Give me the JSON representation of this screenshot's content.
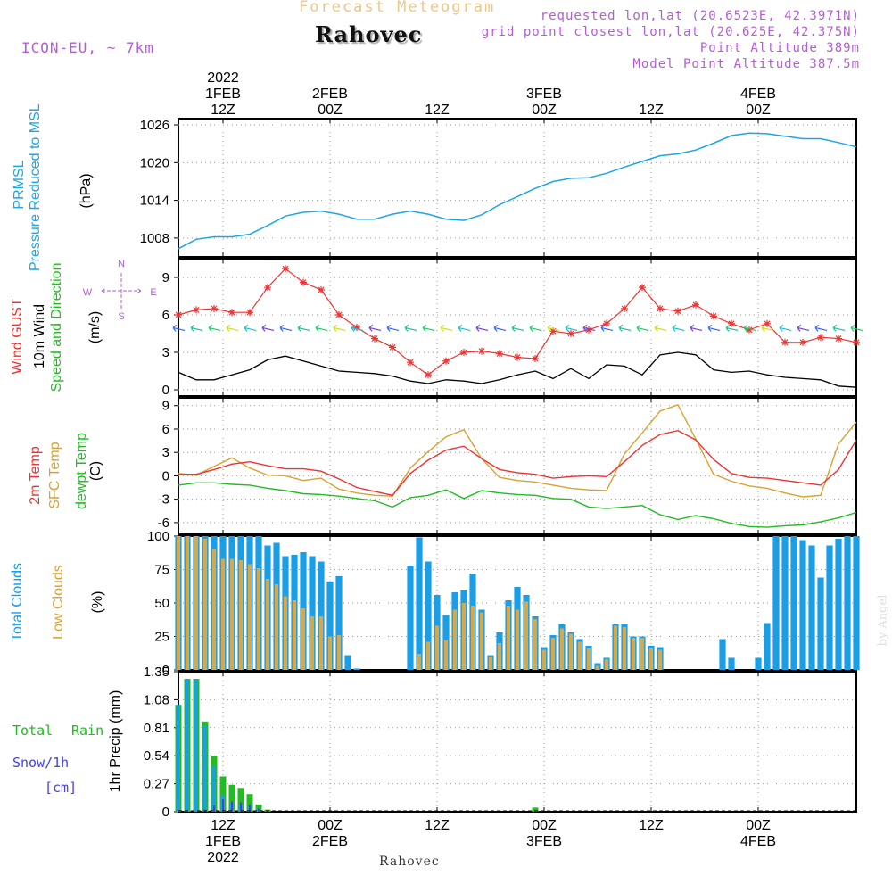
{
  "header": {
    "product": "Forecast Meteogram",
    "location": "Rahovec",
    "model": "ICON-EU, ~ 7km",
    "requested": "requested lon,lat (20.6523E, 42.3971N)",
    "gridpoint": "grid point closest lon,lat (20.625E, 42.375N)",
    "point_alt": "Point Altitude 389m",
    "model_alt": "Model Point Altitude 387.5m",
    "footer": "Rahovec",
    "credit": "by Angel"
  },
  "time_axis": {
    "top_ticks": [
      {
        "hour": 12,
        "l1": "2022",
        "l2": "1FEB",
        "l3": "12Z"
      },
      {
        "hour": 24,
        "l1": "",
        "l2": "2FEB",
        "l3": "00Z"
      },
      {
        "hour": 36,
        "l1": "",
        "l2": "",
        "l3": "12Z"
      },
      {
        "hour": 48,
        "l1": "",
        "l2": "3FEB",
        "l3": "00Z"
      },
      {
        "hour": 60,
        "l1": "",
        "l2": "",
        "l3": "12Z"
      },
      {
        "hour": 72,
        "l1": "",
        "l2": "4FEB",
        "l3": "00Z"
      }
    ],
    "bottom_ticks": [
      {
        "hour": 12,
        "l1": "12Z",
        "l2": "1FEB",
        "l3": "2022"
      },
      {
        "hour": 24,
        "l1": "00Z",
        "l2": "2FEB",
        "l3": ""
      },
      {
        "hour": 36,
        "l1": "12Z",
        "l2": "",
        "l3": ""
      },
      {
        "hour": 48,
        "l1": "00Z",
        "l2": "3FEB",
        "l3": ""
      },
      {
        "hour": 60,
        "l1": "12Z",
        "l2": "",
        "l3": ""
      },
      {
        "hour": 72,
        "l1": "00Z",
        "l2": "4FEB",
        "l3": ""
      }
    ],
    "start": "2022-02-01 07Z",
    "end": "2022-02-04 10Z",
    "range_hours": [
      7,
      83
    ]
  },
  "labels": {
    "pressure": {
      "a": "PRMSL",
      "b": "Pressure Reduced to MSL",
      "unit": "(hPa)"
    },
    "wind": {
      "a": "Wind GUST",
      "b": "10m Wind",
      "c": "Speed and Direction",
      "unit": "(m/s)",
      "compass_w": "W",
      "compass_e": "E",
      "compass_n": "N",
      "compass_s": "S"
    },
    "temp": {
      "a": "2m Temp",
      "b": "SFC Temp",
      "c": "dewpt Temp",
      "unit": "(C)"
    },
    "clouds": {
      "a": "Total Clouds",
      "b": "Low Clouds",
      "unit": "(%)"
    },
    "precip": {
      "a": "Total",
      "b": "Rain",
      "c": "Snow/1h",
      "d": "[cm]",
      "unit": "1hr Precip (mm)"
    }
  },
  "colors": {
    "pressure": "#1ba6e6",
    "gust": "#ee3333",
    "wind": "#000000",
    "wind_label": "#22bb22",
    "t2m": "#ee3333",
    "sfc": "#d8a230",
    "dewpt": "#22bb22",
    "total_clouds": "#1a9ee6",
    "low_clouds": "#d8a848",
    "total_precip": "#22bb22",
    "rain": "#1a9ee6",
    "snow": "#4444dd",
    "header_purple": "#b060d0"
  },
  "chart_data": [
    {
      "type": "line",
      "name": "Pressure Reduced to MSL",
      "x": [
        7,
        9,
        11,
        13,
        15,
        17,
        19,
        21,
        23,
        25,
        27,
        29,
        31,
        33,
        35,
        37,
        39,
        41,
        43,
        45,
        47,
        49,
        51,
        53,
        55,
        57,
        59,
        61,
        63,
        65,
        67,
        69,
        71,
        73,
        75,
        77,
        79,
        81,
        83
      ],
      "series": [
        {
          "name": "PRMSL",
          "values": [
            1006.3,
            1007.8,
            1008.2,
            1008.2,
            1008.6,
            1010.0,
            1011.5,
            1012.1,
            1012.3,
            1011.8,
            1011.0,
            1011.0,
            1011.8,
            1012.3,
            1011.8,
            1011.0,
            1010.8,
            1011.7,
            1013.3,
            1014.6,
            1015.9,
            1017.0,
            1017.5,
            1017.6,
            1018.3,
            1019.3,
            1020.2,
            1021.1,
            1021.4,
            1022.0,
            1023.1,
            1024.3,
            1024.7,
            1024.6,
            1024.2,
            1023.8,
            1023.8,
            1023.2,
            1022.5
          ]
        }
      ],
      "ylabel": "(hPa)",
      "ylim": [
        1005,
        1027
      ],
      "yticks": [
        1008,
        1014,
        1020,
        1026
      ],
      "grid": true
    },
    {
      "type": "line",
      "name": "Wind",
      "x": [
        7,
        9,
        11,
        13,
        15,
        17,
        19,
        21,
        23,
        25,
        27,
        29,
        31,
        33,
        35,
        37,
        39,
        41,
        43,
        45,
        47,
        49,
        51,
        53,
        55,
        57,
        59,
        61,
        63,
        65,
        67,
        69,
        71,
        73,
        75,
        77,
        79,
        81,
        83
      ],
      "series": [
        {
          "name": "Wind GUST",
          "values": [
            6.0,
            6.4,
            6.5,
            6.2,
            6.2,
            8.2,
            9.7,
            8.6,
            8.0,
            6.0,
            5.0,
            4.1,
            3.4,
            2.2,
            1.2,
            2.3,
            3.0,
            3.1,
            2.9,
            2.6,
            2.5,
            4.7,
            4.5,
            4.8,
            5.3,
            6.5,
            8.2,
            6.5,
            6.3,
            6.8,
            5.9,
            5.3,
            4.8,
            5.3,
            3.8,
            3.8,
            4.2,
            4.1,
            3.8
          ]
        },
        {
          "name": "10m Wind",
          "values": [
            1.4,
            0.8,
            0.8,
            1.2,
            1.6,
            2.4,
            2.7,
            2.3,
            1.9,
            1.5,
            1.4,
            1.3,
            1.1,
            0.7,
            0.5,
            0.8,
            0.7,
            0.5,
            0.8,
            1.2,
            1.5,
            0.9,
            1.7,
            0.9,
            2.0,
            1.9,
            1.2,
            2.8,
            3.0,
            2.8,
            1.6,
            1.4,
            1.5,
            1.2,
            1.0,
            0.9,
            0.8,
            0.3,
            0.2
          ]
        }
      ],
      "ylabel": "(m/s)",
      "ylim": [
        -0.5,
        10.5
      ],
      "yticks": [
        0,
        3,
        6,
        9
      ],
      "grid": true
    },
    {
      "type": "line",
      "name": "Temperature",
      "x": [
        7,
        9,
        11,
        13,
        15,
        17,
        19,
        21,
        23,
        25,
        27,
        29,
        31,
        33,
        35,
        37,
        39,
        41,
        43,
        45,
        47,
        49,
        51,
        53,
        55,
        57,
        59,
        61,
        63,
        65,
        67,
        69,
        71,
        73,
        75,
        77,
        79,
        81,
        83
      ],
      "series": [
        {
          "name": "2m Temp",
          "values": [
            0.2,
            0.2,
            0.8,
            1.5,
            1.8,
            1.3,
            0.9,
            0.9,
            0.6,
            -0.4,
            -1.5,
            -2.0,
            -2.5,
            0.3,
            2.0,
            3.3,
            3.8,
            2.2,
            0.8,
            0.4,
            0.2,
            -0.3,
            -0.1,
            0.0,
            -0.1,
            1.8,
            3.9,
            5.3,
            5.8,
            4.6,
            2.1,
            0.3,
            -0.2,
            -0.3,
            -0.6,
            -0.9,
            -1.2,
            0.8,
            4.6
          ]
        },
        {
          "name": "SFC Temp",
          "values": [
            0.3,
            0.1,
            1.2,
            2.3,
            1.0,
            0.1,
            0.0,
            -0.6,
            -0.3,
            -1.7,
            -2.2,
            -2.5,
            -2.6,
            1.0,
            3.1,
            5.0,
            5.9,
            2.2,
            -0.2,
            -0.6,
            -0.8,
            -1.2,
            -1.6,
            -1.8,
            -1.9,
            2.8,
            5.5,
            8.3,
            9.1,
            4.7,
            0.2,
            -0.7,
            -1.3,
            -1.6,
            -2.2,
            -2.7,
            -2.5,
            4.1,
            6.9
          ]
        },
        {
          "name": "dewpt Temp",
          "values": [
            -1.2,
            -0.9,
            -0.9,
            -1.1,
            -1.2,
            -1.6,
            -1.9,
            -2.3,
            -2.4,
            -2.6,
            -2.9,
            -3.2,
            -4.0,
            -2.8,
            -2.5,
            -1.8,
            -2.9,
            -1.9,
            -2.2,
            -2.4,
            -2.5,
            -2.9,
            -3.0,
            -4.0,
            -4.2,
            -4.0,
            -3.8,
            -5.0,
            -5.6,
            -5.1,
            -5.5,
            -6.1,
            -6.5,
            -6.6,
            -6.4,
            -6.3,
            -5.9,
            -5.4,
            -4.7
          ]
        }
      ],
      "ylabel": "(C)",
      "ylim": [
        -7.5,
        10
      ],
      "yticks": [
        -6,
        -3,
        0,
        3,
        6,
        9
      ],
      "grid": true
    },
    {
      "type": "bar",
      "name": "Clouds",
      "x": [
        7,
        8,
        9,
        10,
        11,
        12,
        13,
        14,
        15,
        16,
        17,
        18,
        19,
        20,
        21,
        22,
        23,
        24,
        25,
        26,
        27,
        28,
        29,
        30,
        31,
        32,
        33,
        34,
        35,
        36,
        37,
        38,
        39,
        40,
        41,
        42,
        43,
        44,
        45,
        46,
        47,
        48,
        49,
        50,
        51,
        52,
        53,
        54,
        55,
        56,
        57,
        58,
        59,
        60,
        61,
        62,
        63,
        64,
        65,
        66,
        67,
        68,
        69,
        70,
        71,
        72,
        73,
        74,
        75,
        76,
        77,
        78,
        79,
        80,
        81,
        82,
        83
      ],
      "series": [
        {
          "name": "Total Clouds",
          "values": [
            100,
            100,
            100,
            100,
            100,
            100,
            100,
            100,
            100,
            100,
            93,
            95,
            85,
            86,
            88,
            85,
            81,
            66,
            70,
            11,
            1,
            0,
            0,
            0,
            0,
            0,
            78,
            99,
            81,
            56,
            41,
            58,
            60,
            72,
            45,
            11,
            28,
            52,
            62,
            56,
            40,
            17,
            26,
            34,
            28,
            23,
            18,
            5,
            9,
            34,
            34,
            25,
            25,
            18,
            17,
            0,
            0,
            0,
            0,
            0,
            0,
            23,
            9,
            0,
            0,
            9,
            35,
            100,
            100,
            100,
            97,
            93,
            69,
            93,
            98,
            100,
            100
          ]
        },
        {
          "name": "Low Clouds",
          "values": [
            100,
            100,
            100,
            98,
            90,
            83,
            83,
            82,
            79,
            76,
            68,
            64,
            55,
            52,
            46,
            40,
            40,
            25,
            26,
            0,
            0,
            0,
            0,
            0,
            0,
            0,
            0,
            12,
            21,
            33,
            22,
            45,
            50,
            48,
            43,
            10,
            20,
            48,
            45,
            51,
            38,
            15,
            24,
            31,
            27,
            21,
            16,
            3,
            8,
            33,
            32,
            24,
            24,
            16,
            15,
            0,
            0,
            0,
            0,
            0,
            0,
            0,
            0,
            0,
            0,
            0,
            0,
            0,
            0,
            0,
            0,
            0,
            0,
            0,
            0,
            0,
            0
          ]
        }
      ],
      "ylabel": "(%)",
      "ylim": [
        0,
        100
      ],
      "yticks": [
        0,
        25,
        50,
        75,
        100
      ],
      "grid": true
    },
    {
      "type": "bar",
      "name": "1hr Precip",
      "x": [
        7,
        8,
        9,
        10,
        11,
        12,
        13,
        14,
        15,
        16,
        17,
        18,
        19,
        20,
        21,
        22,
        23,
        24,
        25,
        26,
        27,
        28,
        29,
        30,
        31,
        32,
        33,
        34,
        35,
        36,
        37,
        38,
        39,
        40,
        41,
        42,
        43,
        44,
        45,
        46,
        47,
        48,
        49,
        50,
        51,
        52,
        53,
        54,
        55,
        56,
        57,
        58,
        59,
        60,
        61,
        62,
        63,
        64,
        65,
        66,
        67,
        68,
        69,
        70,
        71,
        72,
        73,
        74,
        75,
        76,
        77,
        78,
        79,
        80,
        81,
        82,
        83
      ],
      "series": [
        {
          "name": "Total",
          "values": [
            1.03,
            1.28,
            1.28,
            0.87,
            0.54,
            0.34,
            0.26,
            0.23,
            0.17,
            0.07,
            0.02,
            0,
            0,
            0,
            0,
            0,
            0,
            0,
            0,
            0,
            0,
            0,
            0,
            0,
            0,
            0,
            0,
            0,
            0,
            0,
            0,
            0,
            0,
            0,
            0,
            0,
            0,
            0,
            0,
            0,
            0.04,
            0,
            0,
            0,
            0,
            0,
            0,
            0,
            0,
            0,
            0,
            0,
            0,
            0,
            0,
            0,
            0,
            0,
            0,
            0,
            0,
            0,
            0,
            0,
            0,
            0,
            0,
            0,
            0,
            0,
            0,
            0,
            0,
            0,
            0,
            0,
            0
          ]
        },
        {
          "name": "Rain",
          "values": [
            1.03,
            1.28,
            1.28,
            0.83,
            0.44,
            0.16,
            0.09,
            0.07,
            0.05,
            0.03,
            0.01,
            0,
            0,
            0,
            0,
            0,
            0,
            0,
            0,
            0,
            0,
            0,
            0,
            0,
            0,
            0,
            0,
            0,
            0,
            0,
            0,
            0,
            0,
            0,
            0,
            0,
            0,
            0,
            0,
            0,
            0,
            0,
            0,
            0,
            0,
            0,
            0,
            0,
            0,
            0,
            0,
            0,
            0,
            0,
            0,
            0,
            0,
            0,
            0,
            0,
            0,
            0,
            0,
            0,
            0,
            0,
            0,
            0,
            0,
            0,
            0,
            0,
            0,
            0,
            0,
            0,
            0
          ]
        },
        {
          "name": "Snow/1h",
          "values": [
            0,
            0,
            0,
            0.02,
            0.06,
            0.12,
            0.1,
            0.09,
            0.07,
            0.03,
            0.01,
            0,
            0,
            0,
            0,
            0,
            0,
            0,
            0,
            0,
            0,
            0,
            0,
            0,
            0,
            0,
            0,
            0,
            0,
            0,
            0,
            0,
            0,
            0,
            0,
            0,
            0,
            0,
            0,
            0,
            0,
            0,
            0,
            0,
            0,
            0,
            0,
            0,
            0,
            0,
            0,
            0,
            0,
            0,
            0,
            0,
            0,
            0,
            0,
            0,
            0,
            0,
            0,
            0,
            0,
            0,
            0,
            0,
            0,
            0,
            0,
            0,
            0,
            0,
            0,
            0,
            0
          ]
        }
      ],
      "ylabel": "1hr Precip (mm)",
      "ylim": [
        0,
        1.35
      ],
      "yticks": [
        0,
        0.27,
        0.54,
        0.81,
        1.08,
        1.35
      ],
      "grid": true
    }
  ]
}
